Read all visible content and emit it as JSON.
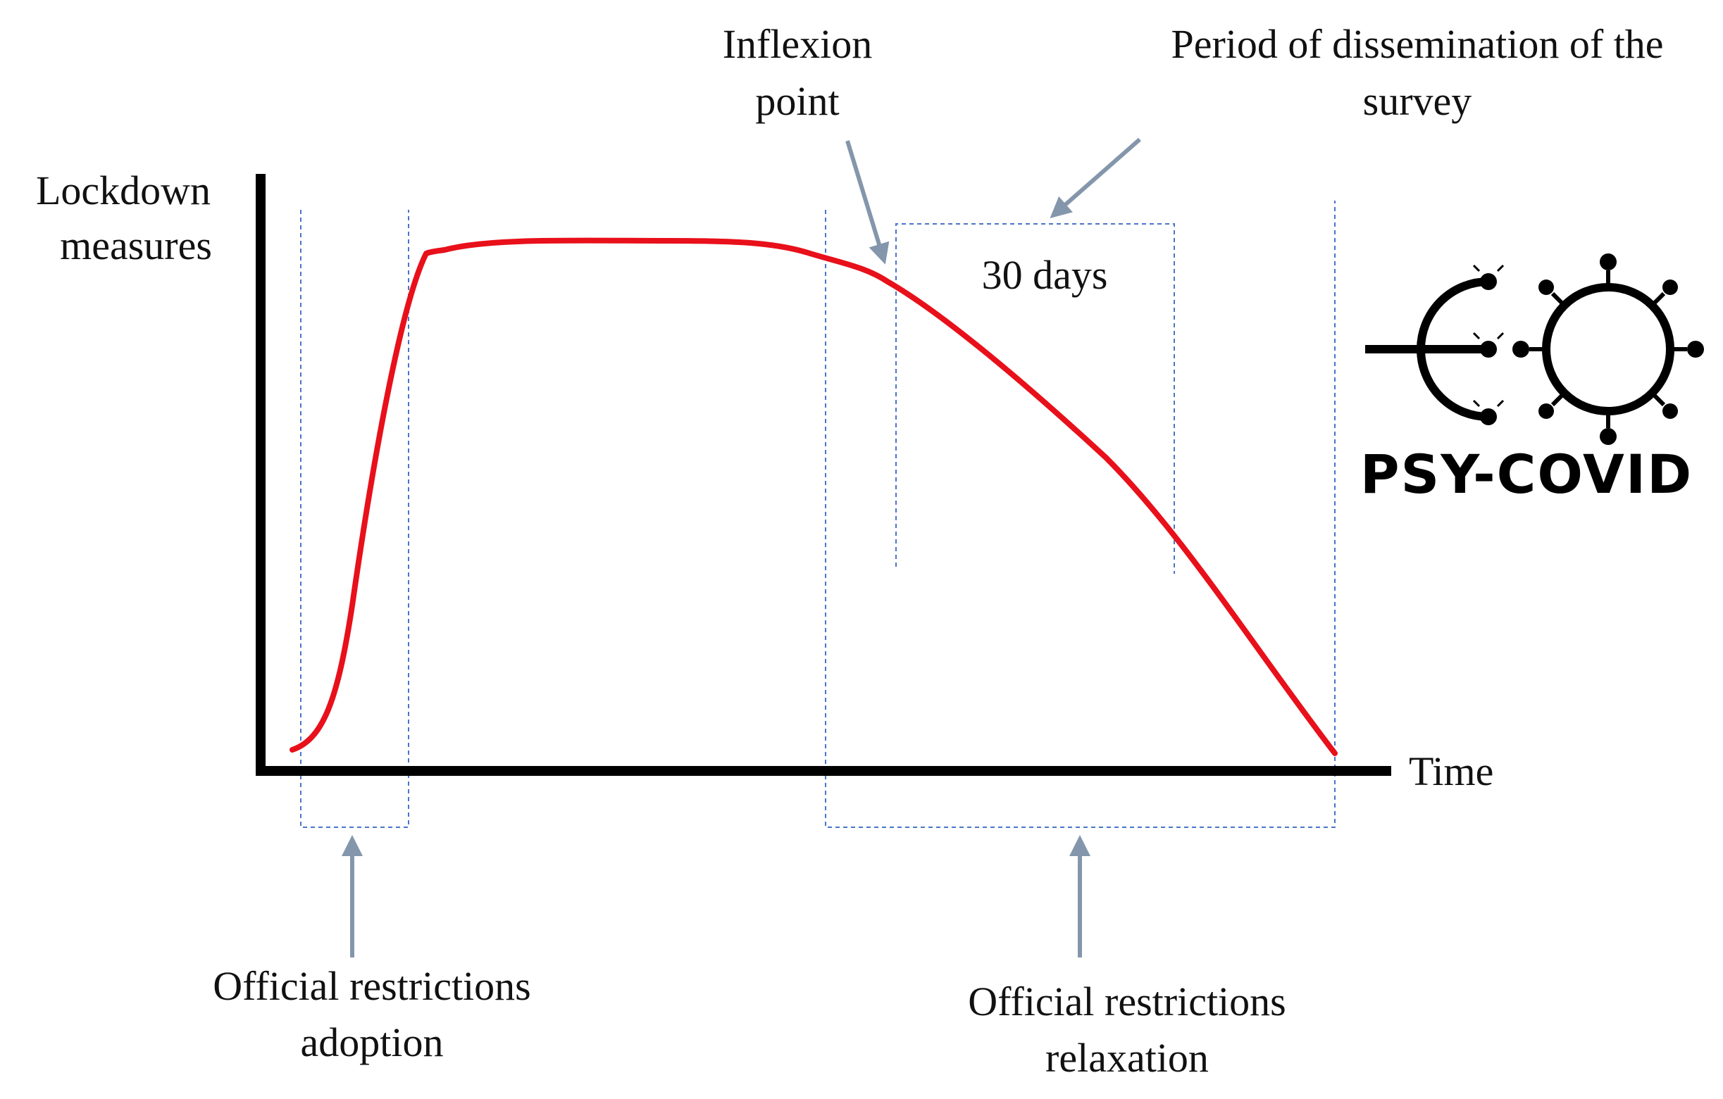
{
  "diagram": {
    "axes": {
      "y_label_line1": "Lockdown",
      "y_label_line2": "measures",
      "x_label": "Time"
    },
    "annotations": {
      "inflexion_line1": "Inflexion",
      "inflexion_line2": "point",
      "survey_line1": "Period of dissemination of the",
      "survey_line2": "survey",
      "survey_duration": "30 days",
      "adoption_line1": "Official restrictions",
      "adoption_line2": "adoption",
      "relaxation_line1": "Official restrictions",
      "relaxation_line2": "relaxation"
    },
    "logo": {
      "text": "PSY-COVID"
    },
    "colors": {
      "curve": "#e8101a",
      "axis": "#000000",
      "dashed_box": "#4a74c9",
      "arrow": "#8496ab",
      "text": "#111111"
    }
  }
}
